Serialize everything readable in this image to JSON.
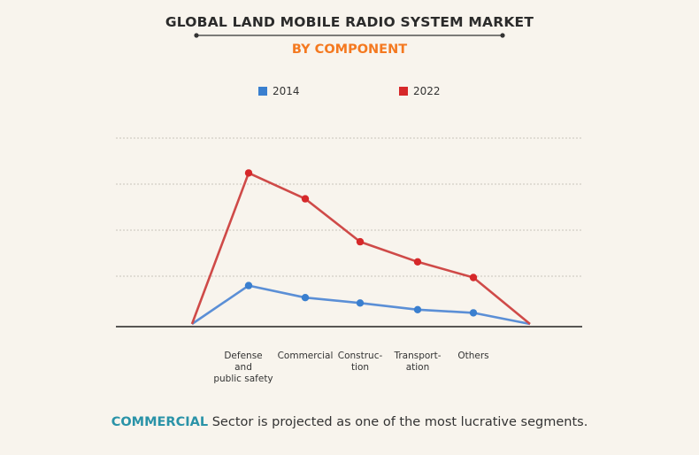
{
  "header": {
    "title": "GLOBAL LAND MOBILE RADIO SYSTEM MARKET",
    "subtitle": "BY COMPONENT"
  },
  "footer": {
    "highlight": "COMMERCIAL",
    "text": " Sector is projected as one of the most lucrative segments."
  },
  "colors": {
    "series_2014": "#3a7fcf",
    "series_2022": "#d6282a",
    "line_2014": "#5b8fd6",
    "line_2022": "#cf4a48",
    "accent": "#f47920"
  },
  "chart_data": {
    "type": "line",
    "title": "GLOBAL LAND MOBILE RADIO SYSTEM MARKET",
    "subtitle": "BY COMPONENT",
    "legend_position": "top",
    "grid": true,
    "y_ticks_shown": false,
    "categories": [
      [
        "Defense",
        "and",
        "public safety"
      ],
      [
        "Commercial"
      ],
      [
        "Construc-",
        "tion"
      ],
      [
        "Transport-",
        "ation"
      ],
      [
        "Others"
      ]
    ],
    "ylim": [
      0,
      4.2
    ],
    "series": [
      {
        "name": "2014",
        "values": [
          0.9,
          0.63,
          0.51,
          0.36,
          0.29
        ]
      },
      {
        "name": "2022",
        "values": [
          3.42,
          2.84,
          1.88,
          1.43,
          1.08
        ]
      }
    ]
  }
}
